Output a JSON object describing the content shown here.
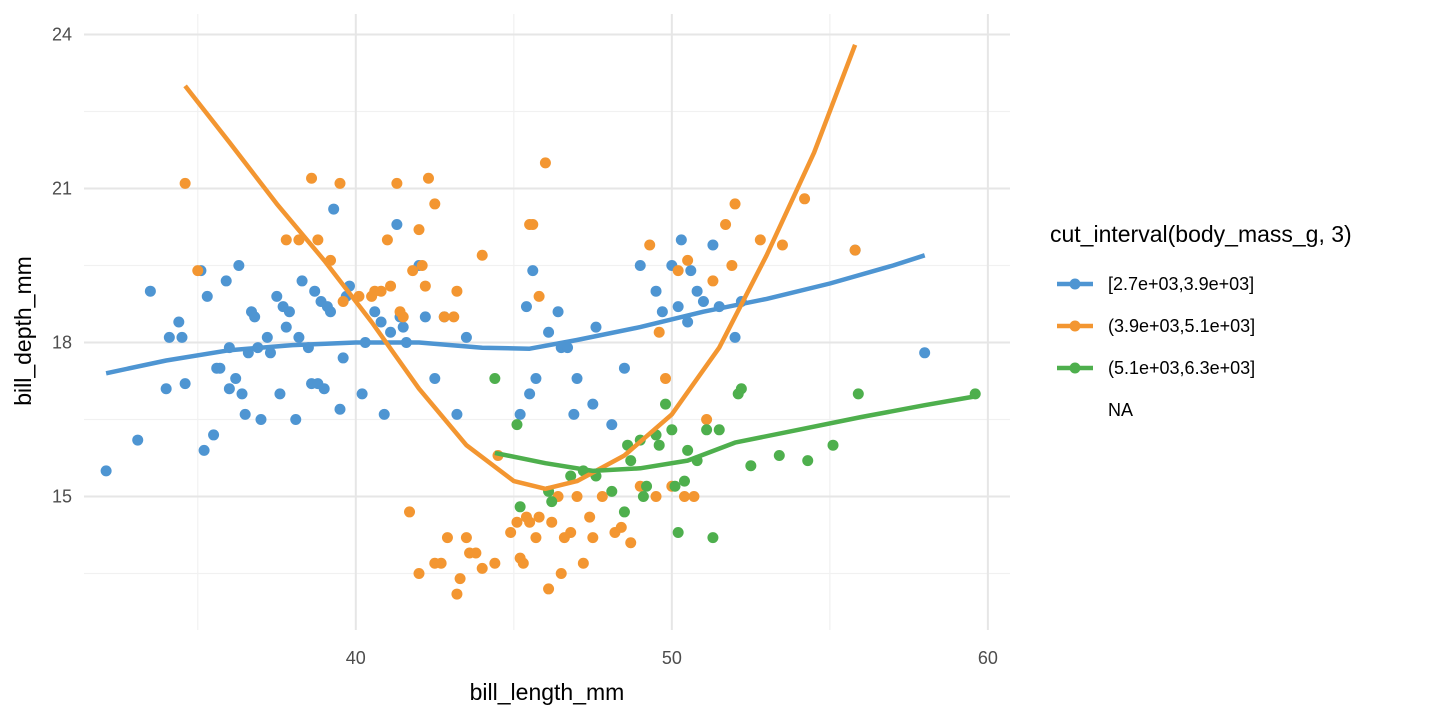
{
  "chart_data": {
    "type": "scatter",
    "xlabel": "bill_length_mm",
    "ylabel": "bill_depth_mm",
    "xlim": [
      31.4,
      60.7
    ],
    "ylim": [
      12.4,
      24.4
    ],
    "x_ticks": [
      40,
      50,
      60
    ],
    "x_minor_ticks": [
      35,
      45,
      55
    ],
    "y_ticks": [
      15,
      18,
      21,
      24
    ],
    "y_minor_ticks": [
      13.5,
      16.5,
      19.5,
      22.5
    ],
    "x_tick_labels": [
      "40",
      "50",
      "60"
    ],
    "y_tick_labels": [
      "15",
      "18",
      "21",
      "24"
    ],
    "grid": true,
    "legend": {
      "title": "cut_interval(body_mass_g, 3)",
      "position": "right",
      "entries": [
        {
          "label": "[2.7e+03,3.9e+03]",
          "color": "#4e95d2"
        },
        {
          "label": "(3.9e+03,5.1e+03]",
          "color": "#f39631"
        },
        {
          "label": "(5.1e+03,6.3e+03]",
          "color": "#4eaf4d"
        },
        {
          "label": "NA",
          "color": ""
        }
      ]
    },
    "series": [
      {
        "name": "[2.7e+03,3.9e+03]",
        "color": "#4e95d2",
        "points": [
          [
            32.1,
            15.5
          ],
          [
            33.1,
            16.1
          ],
          [
            33.5,
            19.0
          ],
          [
            34.0,
            17.1
          ],
          [
            34.1,
            18.1
          ],
          [
            34.4,
            18.4
          ],
          [
            34.5,
            18.1
          ],
          [
            34.6,
            17.2
          ],
          [
            35.1,
            19.4
          ],
          [
            35.2,
            15.9
          ],
          [
            35.3,
            18.9
          ],
          [
            35.5,
            16.2
          ],
          [
            35.6,
            17.5
          ],
          [
            35.7,
            17.5
          ],
          [
            35.9,
            19.2
          ],
          [
            36.0,
            17.1
          ],
          [
            36.0,
            17.9
          ],
          [
            36.2,
            17.3
          ],
          [
            36.3,
            19.5
          ],
          [
            36.4,
            17.0
          ],
          [
            36.5,
            16.6
          ],
          [
            36.6,
            17.8
          ],
          [
            36.7,
            18.6
          ],
          [
            36.8,
            18.5
          ],
          [
            36.9,
            17.9
          ],
          [
            37.0,
            16.5
          ],
          [
            37.2,
            18.1
          ],
          [
            37.3,
            17.8
          ],
          [
            37.5,
            18.9
          ],
          [
            37.6,
            17.0
          ],
          [
            37.7,
            18.7
          ],
          [
            37.8,
            18.3
          ],
          [
            37.9,
            18.6
          ],
          [
            38.1,
            16.5
          ],
          [
            38.2,
            18.1
          ],
          [
            38.3,
            19.2
          ],
          [
            38.5,
            17.9
          ],
          [
            38.6,
            17.2
          ],
          [
            38.7,
            19.0
          ],
          [
            38.8,
            17.2
          ],
          [
            38.9,
            18.8
          ],
          [
            39.0,
            17.1
          ],
          [
            39.1,
            18.7
          ],
          [
            39.2,
            18.6
          ],
          [
            39.3,
            20.6
          ],
          [
            39.5,
            16.7
          ],
          [
            39.6,
            17.7
          ],
          [
            39.7,
            18.9
          ],
          [
            39.8,
            19.1
          ],
          [
            40.2,
            17.0
          ],
          [
            40.3,
            18.0
          ],
          [
            40.6,
            18.6
          ],
          [
            40.8,
            18.4
          ],
          [
            40.9,
            16.6
          ],
          [
            41.1,
            18.2
          ],
          [
            41.3,
            20.3
          ],
          [
            41.4,
            18.5
          ],
          [
            41.5,
            18.3
          ],
          [
            41.6,
            18.0
          ],
          [
            42.0,
            19.5
          ],
          [
            42.2,
            18.5
          ],
          [
            42.5,
            17.3
          ],
          [
            42.8,
            18.5
          ],
          [
            43.2,
            16.6
          ],
          [
            43.5,
            18.1
          ],
          [
            45.2,
            16.6
          ],
          [
            45.4,
            18.7
          ],
          [
            45.5,
            17.0
          ],
          [
            45.6,
            19.4
          ],
          [
            45.7,
            17.3
          ],
          [
            46.1,
            18.2
          ],
          [
            46.4,
            18.6
          ],
          [
            46.5,
            17.9
          ],
          [
            46.7,
            17.9
          ],
          [
            46.9,
            16.6
          ],
          [
            47.0,
            17.3
          ],
          [
            47.5,
            16.8
          ],
          [
            47.6,
            18.3
          ],
          [
            48.1,
            16.4
          ],
          [
            48.5,
            17.5
          ],
          [
            49.0,
            19.5
          ],
          [
            49.5,
            19.0
          ],
          [
            49.7,
            18.6
          ],
          [
            50.0,
            19.5
          ],
          [
            50.2,
            18.7
          ],
          [
            50.3,
            20.0
          ],
          [
            50.5,
            18.4
          ],
          [
            50.6,
            19.4
          ],
          [
            50.8,
            19.0
          ],
          [
            51.0,
            18.8
          ],
          [
            51.3,
            19.9
          ],
          [
            51.5,
            18.7
          ],
          [
            52.0,
            18.1
          ],
          [
            52.2,
            18.8
          ],
          [
            55.8,
            19.8
          ],
          [
            58.0,
            17.8
          ]
        ]
      },
      {
        "name": "(3.9e+03,5.1e+03]",
        "color": "#f39631",
        "points": [
          [
            34.6,
            21.1
          ],
          [
            35.0,
            19.4
          ],
          [
            37.8,
            20.0
          ],
          [
            38.2,
            20.0
          ],
          [
            38.6,
            21.2
          ],
          [
            38.8,
            20.0
          ],
          [
            39.2,
            19.6
          ],
          [
            39.5,
            21.1
          ],
          [
            39.6,
            18.8
          ],
          [
            40.1,
            18.9
          ],
          [
            40.5,
            18.9
          ],
          [
            40.6,
            19.0
          ],
          [
            40.8,
            19.0
          ],
          [
            41.0,
            20.0
          ],
          [
            41.1,
            19.1
          ],
          [
            41.3,
            21.1
          ],
          [
            41.4,
            18.6
          ],
          [
            41.5,
            18.5
          ],
          [
            41.8,
            19.4
          ],
          [
            42.0,
            20.2
          ],
          [
            42.1,
            19.5
          ],
          [
            42.2,
            19.1
          ],
          [
            42.3,
            21.2
          ],
          [
            42.5,
            20.7
          ],
          [
            42.8,
            18.5
          ],
          [
            43.1,
            18.5
          ],
          [
            43.2,
            19.0
          ],
          [
            44.0,
            19.7
          ],
          [
            45.5,
            20.3
          ],
          [
            45.8,
            18.9
          ],
          [
            46.0,
            21.5
          ],
          [
            41.7,
            14.7
          ],
          [
            42.0,
            13.5
          ],
          [
            42.5,
            13.7
          ],
          [
            42.7,
            13.7
          ],
          [
            42.9,
            14.2
          ],
          [
            43.2,
            13.1
          ],
          [
            43.3,
            13.4
          ],
          [
            43.5,
            14.2
          ],
          [
            43.6,
            13.9
          ],
          [
            43.8,
            13.9
          ],
          [
            44.0,
            13.6
          ],
          [
            44.4,
            13.7
          ],
          [
            44.9,
            14.3
          ],
          [
            45.1,
            14.5
          ],
          [
            45.2,
            13.8
          ],
          [
            45.3,
            13.7
          ],
          [
            45.4,
            14.6
          ],
          [
            45.5,
            14.5
          ],
          [
            45.7,
            14.2
          ],
          [
            45.8,
            14.6
          ],
          [
            46.1,
            13.2
          ],
          [
            46.2,
            14.5
          ],
          [
            46.4,
            15.0
          ],
          [
            46.5,
            13.5
          ],
          [
            46.6,
            14.2
          ],
          [
            46.8,
            14.3
          ],
          [
            47.2,
            13.7
          ],
          [
            47.4,
            14.6
          ],
          [
            47.5,
            14.2
          ],
          [
            47.8,
            15.0
          ],
          [
            48.2,
            14.3
          ],
          [
            48.4,
            14.4
          ],
          [
            48.7,
            14.1
          ],
          [
            49.0,
            15.2
          ],
          [
            49.5,
            15.0
          ],
          [
            50.0,
            15.2
          ],
          [
            50.4,
            15.0
          ],
          [
            50.7,
            15.0
          ],
          [
            51.1,
            16.5
          ],
          [
            45.6,
            20.3
          ],
          [
            47.0,
            15.0
          ],
          [
            44.5,
            15.8
          ],
          [
            49.3,
            19.9
          ],
          [
            49.6,
            18.2
          ],
          [
            49.8,
            17.3
          ],
          [
            50.2,
            19.4
          ],
          [
            50.5,
            19.6
          ],
          [
            51.3,
            19.2
          ],
          [
            51.7,
            20.3
          ],
          [
            51.9,
            19.5
          ],
          [
            52.0,
            20.7
          ],
          [
            52.8,
            20.0
          ],
          [
            53.5,
            19.9
          ],
          [
            54.2,
            20.8
          ],
          [
            55.8,
            19.8
          ]
        ]
      },
      {
        "name": "(5.1e+03,6.3e+03]",
        "color": "#4eaf4d",
        "points": [
          [
            44.4,
            17.3
          ],
          [
            45.1,
            16.4
          ],
          [
            45.2,
            14.8
          ],
          [
            46.1,
            15.1
          ],
          [
            46.2,
            14.9
          ],
          [
            46.8,
            15.4
          ],
          [
            47.2,
            15.5
          ],
          [
            47.6,
            15.4
          ],
          [
            48.1,
            15.1
          ],
          [
            48.5,
            14.7
          ],
          [
            48.6,
            16.0
          ],
          [
            48.7,
            15.7
          ],
          [
            49.0,
            16.1
          ],
          [
            49.1,
            15.0
          ],
          [
            49.2,
            15.2
          ],
          [
            49.5,
            16.2
          ],
          [
            49.6,
            16.0
          ],
          [
            49.8,
            16.8
          ],
          [
            50.0,
            16.3
          ],
          [
            50.1,
            15.2
          ],
          [
            50.2,
            14.3
          ],
          [
            50.4,
            15.3
          ],
          [
            50.5,
            15.9
          ],
          [
            50.8,
            15.7
          ],
          [
            51.1,
            16.3
          ],
          [
            51.3,
            14.2
          ],
          [
            51.5,
            16.3
          ],
          [
            52.1,
            17.0
          ],
          [
            52.2,
            17.1
          ],
          [
            52.5,
            15.6
          ],
          [
            53.4,
            15.8
          ],
          [
            54.3,
            15.7
          ],
          [
            55.1,
            16.0
          ],
          [
            55.9,
            17.0
          ],
          [
            59.6,
            17.0
          ]
        ]
      }
    ],
    "smooth_lines": [
      {
        "name": "[2.7e+03,3.9e+03]",
        "color": "#4e95d2",
        "points": [
          [
            32.1,
            17.4
          ],
          [
            34.0,
            17.65
          ],
          [
            36.0,
            17.85
          ],
          [
            38.0,
            17.95
          ],
          [
            40.0,
            18.0
          ],
          [
            42.0,
            18.0
          ],
          [
            44.0,
            17.9
          ],
          [
            45.5,
            17.88
          ],
          [
            47.0,
            18.05
          ],
          [
            49.0,
            18.3
          ],
          [
            51.0,
            18.6
          ],
          [
            53.0,
            18.85
          ],
          [
            55.0,
            19.15
          ],
          [
            57.0,
            19.5
          ],
          [
            58.0,
            19.7
          ]
        ]
      },
      {
        "name": "(3.9e+03,5.1e+03]",
        "color": "#f39631",
        "points": [
          [
            34.6,
            23.0
          ],
          [
            36.0,
            21.9
          ],
          [
            37.5,
            20.7
          ],
          [
            39.0,
            19.6
          ],
          [
            40.5,
            18.4
          ],
          [
            42.0,
            17.1
          ],
          [
            43.5,
            16.0
          ],
          [
            45.0,
            15.3
          ],
          [
            46.0,
            15.15
          ],
          [
            47.0,
            15.3
          ],
          [
            48.5,
            15.8
          ],
          [
            50.0,
            16.6
          ],
          [
            51.5,
            17.9
          ],
          [
            53.0,
            19.7
          ],
          [
            54.5,
            21.7
          ],
          [
            55.8,
            23.8
          ]
        ]
      },
      {
        "name": "(5.1e+03,6.3e+03]",
        "color": "#4eaf4d",
        "points": [
          [
            44.4,
            15.85
          ],
          [
            46.0,
            15.65
          ],
          [
            47.5,
            15.5
          ],
          [
            49.0,
            15.55
          ],
          [
            50.5,
            15.7
          ],
          [
            52.0,
            16.05
          ],
          [
            54.0,
            16.3
          ],
          [
            56.0,
            16.55
          ],
          [
            58.0,
            16.78
          ],
          [
            59.6,
            16.95
          ]
        ]
      }
    ]
  }
}
